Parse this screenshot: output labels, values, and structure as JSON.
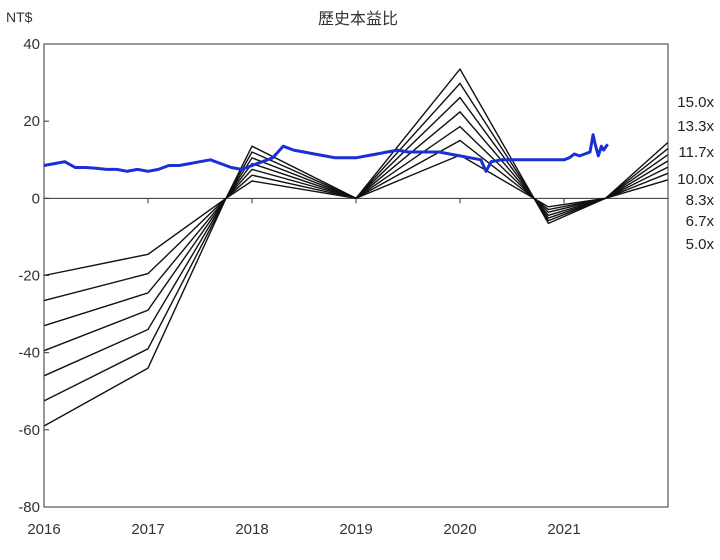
{
  "chart_data": {
    "type": "line",
    "title": "歷史本益比",
    "unit_label": "NT$",
    "ylim": [
      -80,
      40
    ],
    "yticks": [
      40,
      20,
      0,
      -20,
      -40,
      -60,
      -80
    ],
    "xlim": [
      2016.0,
      2022.0
    ],
    "xticks": [
      "2016",
      "2017",
      "2018",
      "2019",
      "2020",
      "2021"
    ],
    "x_tick_values": [
      2016,
      2017,
      2018,
      2019,
      2020,
      2021
    ],
    "band_x": [
      2016.0,
      2017.0,
      2017.75,
      2018.0,
      2019.0,
      2020.0,
      2020.85,
      2021.4,
      2022.0
    ],
    "bands": [
      {
        "label": "15.0x",
        "values": [
          -59,
          -44,
          0,
          13.5,
          0,
          33.5,
          -6.5,
          0,
          14.5
        ]
      },
      {
        "label": "13.3x",
        "values": [
          -52.5,
          -39,
          0,
          12.0,
          0,
          29.8,
          -5.8,
          0,
          12.9
        ]
      },
      {
        "label": "11.7x",
        "values": [
          -46,
          -34,
          0,
          10.5,
          0,
          26.1,
          -5.1,
          0,
          11.3
        ]
      },
      {
        "label": "10.0x",
        "values": [
          -39.5,
          -29,
          0,
          9.0,
          0,
          22.4,
          -4.4,
          0,
          9.7
        ]
      },
      {
        "label": "8.3x",
        "values": [
          -33,
          -24.5,
          0,
          7.5,
          0,
          18.6,
          -3.6,
          0,
          8.1
        ]
      },
      {
        "label": "6.7x",
        "values": [
          -26.5,
          -19.5,
          0,
          6.0,
          0,
          15.0,
          -2.9,
          0,
          6.5
        ]
      },
      {
        "label": "5.0x",
        "values": [
          -20,
          -14.5,
          0,
          4.5,
          0,
          11.2,
          -2.2,
          0,
          4.8
        ]
      }
    ],
    "price": {
      "color": "#1a2fd6",
      "x": [
        2016.0,
        2016.1,
        2016.2,
        2016.3,
        2016.4,
        2016.5,
        2016.6,
        2016.7,
        2016.8,
        2016.9,
        2017.0,
        2017.1,
        2017.2,
        2017.3,
        2017.4,
        2017.5,
        2017.6,
        2017.7,
        2017.8,
        2017.9,
        2018.0,
        2018.1,
        2018.2,
        2018.3,
        2018.4,
        2018.5,
        2018.6,
        2018.7,
        2018.8,
        2018.9,
        2019.0,
        2019.1,
        2019.2,
        2019.3,
        2019.4,
        2019.5,
        2019.6,
        2019.7,
        2019.8,
        2019.9,
        2020.0,
        2020.1,
        2020.2,
        2020.25,
        2020.3,
        2020.4,
        2020.5,
        2020.6,
        2020.7,
        2020.8,
        2020.9,
        2021.0,
        2021.05,
        2021.1,
        2021.15,
        2021.2,
        2021.25,
        2021.28,
        2021.3,
        2021.33,
        2021.36,
        2021.38,
        2021.42
      ],
      "y": [
        8.5,
        9.0,
        9.5,
        8.0,
        8.0,
        7.8,
        7.5,
        7.5,
        7.0,
        7.5,
        7.0,
        7.5,
        8.5,
        8.5,
        9.0,
        9.5,
        10.0,
        9.0,
        8.0,
        7.5,
        8.5,
        9.5,
        10.5,
        13.5,
        12.5,
        12.0,
        11.5,
        11.0,
        10.5,
        10.5,
        10.5,
        11.0,
        11.5,
        12.0,
        12.5,
        12.0,
        12.0,
        12.0,
        12.0,
        11.5,
        11.0,
        10.5,
        10.0,
        7.0,
        9.5,
        10.0,
        10.0,
        10.0,
        10.0,
        10.0,
        10.0,
        10.0,
        10.5,
        11.5,
        11.0,
        11.5,
        12.0,
        16.5,
        14.0,
        11.0,
        13.5,
        12.5,
        14.0
      ]
    }
  }
}
